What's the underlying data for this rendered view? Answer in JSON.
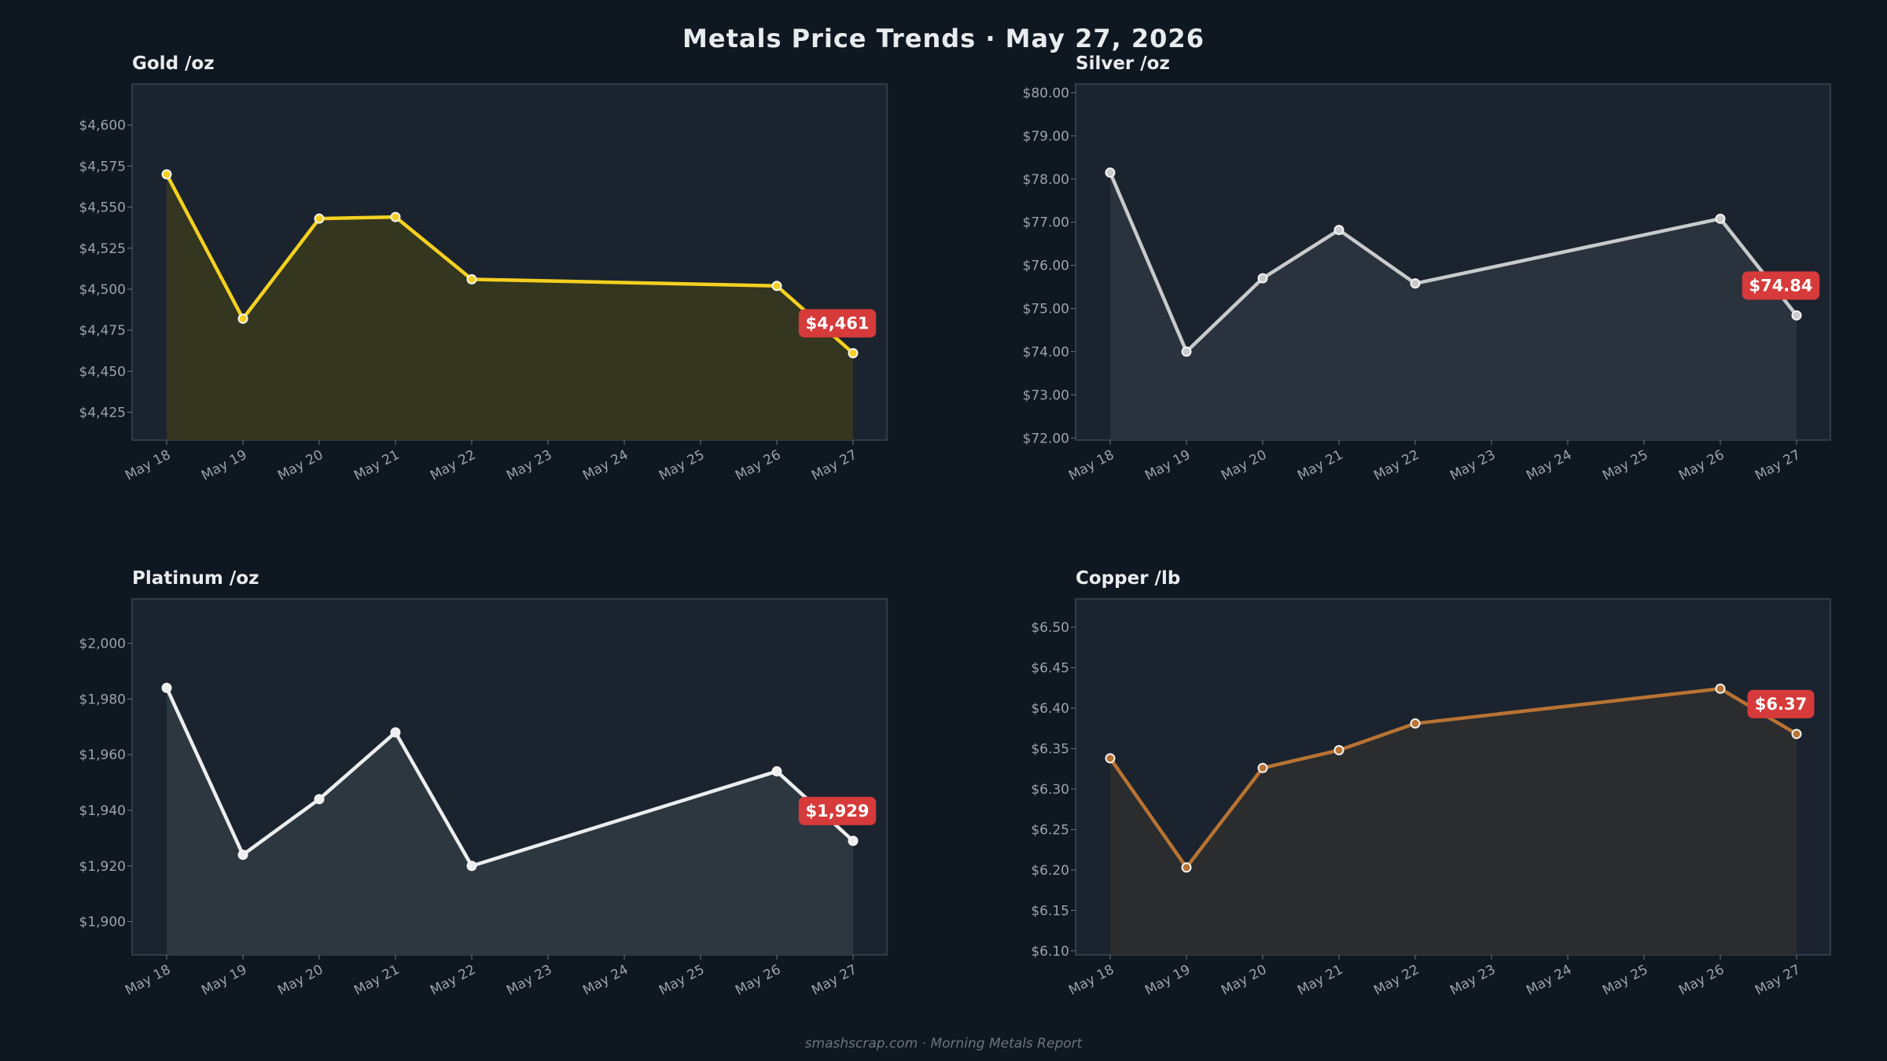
{
  "title": "Metals Price Trends  ·  May 27, 2026",
  "footer": "smashscrap.com  ·  Morning Metals Report",
  "colors": {
    "background": "#0f1720",
    "plot_background": "#1b242e",
    "badge": "#d63a3a",
    "gold": "#f5d020",
    "silver": "#c8cacc",
    "platinum": "#eceeef",
    "copper": "#b87333"
  },
  "chart_data": [
    {
      "type": "line",
      "title": "Gold  /oz",
      "x": [
        "May 18",
        "May 19",
        "May 20",
        "May 21",
        "May 22",
        "May 23",
        "May 24",
        "May 25",
        "May 26",
        "May 27"
      ],
      "series": [
        {
          "x": [
            "May 18",
            "May 19",
            "May 20",
            "May 21",
            "May 22",
            "May 26",
            "May 27"
          ],
          "values": [
            4570,
            4482,
            4543,
            4544,
            4506,
            4502,
            4461
          ]
        }
      ],
      "ylim": [
        4408,
        4625
      ],
      "yticks": [
        4425,
        4450,
        4475,
        4500,
        4525,
        4550,
        4575,
        4600
      ],
      "ytick_labels": [
        "$4,425",
        "$4,450",
        "$4,475",
        "$4,500",
        "$4,525",
        "$4,550",
        "$4,575",
        "$4,600"
      ],
      "latest_label": "$4,461",
      "color": "#f5d020",
      "fill_color": "#34361f",
      "grid": false
    },
    {
      "type": "line",
      "title": "Silver  /oz",
      "x": [
        "May 18",
        "May 19",
        "May 20",
        "May 21",
        "May 22",
        "May 23",
        "May 24",
        "May 25",
        "May 26",
        "May 27"
      ],
      "series": [
        {
          "x": [
            "May 18",
            "May 19",
            "May 20",
            "May 21",
            "May 22",
            "May 26",
            "May 27"
          ],
          "values": [
            78.15,
            74.0,
            75.7,
            76.82,
            75.58,
            77.08,
            74.84
          ]
        }
      ],
      "ylim": [
        71.95,
        80.2
      ],
      "yticks": [
        72,
        73,
        74,
        75,
        76,
        77,
        78,
        79,
        80
      ],
      "ytick_labels": [
        "$72.00",
        "$73.00",
        "$74.00",
        "$75.00",
        "$76.00",
        "$77.00",
        "$78.00",
        "$79.00",
        "$80.00"
      ],
      "latest_label": "$74.84",
      "color": "#c8cacc",
      "fill_color": "#2a333d",
      "grid": false
    },
    {
      "type": "line",
      "title": "Platinum  /oz",
      "x": [
        "May 18",
        "May 19",
        "May 20",
        "May 21",
        "May 22",
        "May 23",
        "May 24",
        "May 25",
        "May 26",
        "May 27"
      ],
      "series": [
        {
          "x": [
            "May 18",
            "May 19",
            "May 20",
            "May 21",
            "May 22",
            "May 26",
            "May 27"
          ],
          "values": [
            1984,
            1924,
            1944,
            1968,
            1920,
            1954,
            1929
          ]
        }
      ],
      "ylim": [
        1888,
        2016
      ],
      "yticks": [
        1900,
        1920,
        1940,
        1960,
        1980,
        2000
      ],
      "ytick_labels": [
        "$1,900",
        "$1,920",
        "$1,940",
        "$1,960",
        "$1,980",
        "$2,000"
      ],
      "latest_label": "$1,929",
      "color": "#eceeef",
      "fill_color": "#2d3740",
      "grid": false
    },
    {
      "type": "line",
      "title": "Copper  /lb",
      "x": [
        "May 18",
        "May 19",
        "May 20",
        "May 21",
        "May 22",
        "May 23",
        "May 24",
        "May 25",
        "May 26",
        "May 27"
      ],
      "series": [
        {
          "x": [
            "May 18",
            "May 19",
            "May 20",
            "May 21",
            "May 22",
            "May 26",
            "May 27"
          ],
          "values": [
            6.338,
            6.203,
            6.326,
            6.348,
            6.381,
            6.424,
            6.368
          ]
        }
      ],
      "ylim": [
        6.095,
        6.535
      ],
      "yticks": [
        6.1,
        6.15,
        6.2,
        6.25,
        6.3,
        6.35,
        6.4,
        6.45,
        6.5
      ],
      "ytick_labels": [
        "$6.10",
        "$6.15",
        "$6.20",
        "$6.25",
        "$6.30",
        "$6.35",
        "$6.40",
        "$6.45",
        "$6.50"
      ],
      "latest_label": "$6.37",
      "color": "#b87333",
      "fill_color": "#2b2c2e",
      "grid": false
    }
  ]
}
